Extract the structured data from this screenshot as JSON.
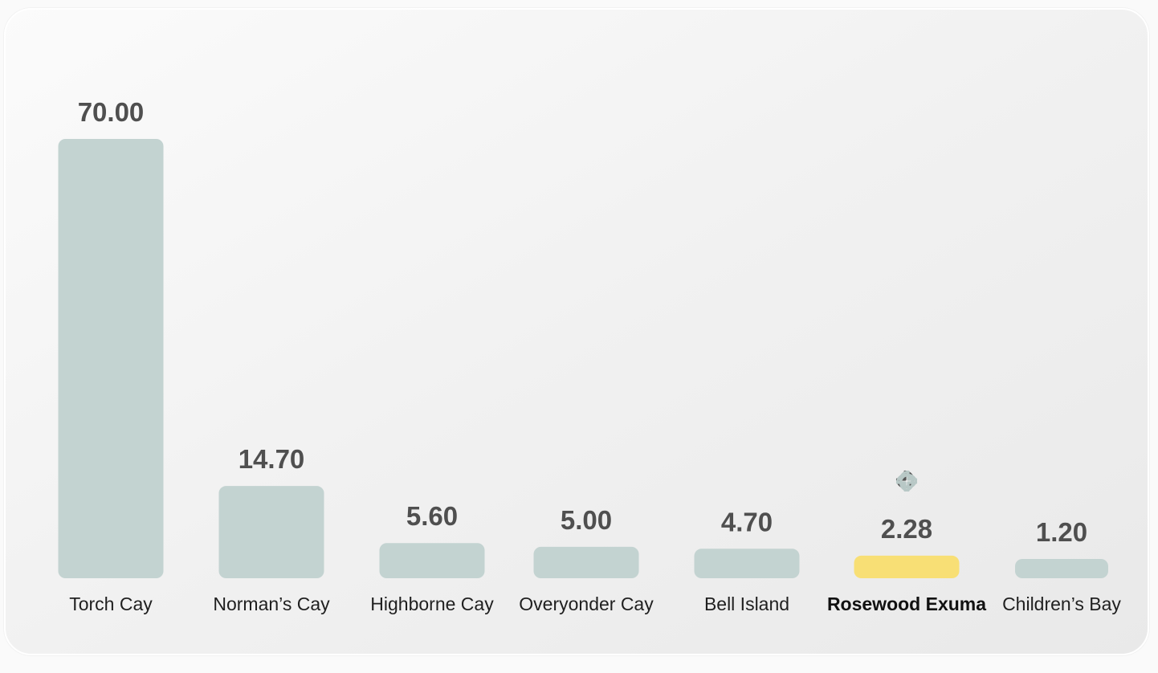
{
  "chart_data": {
    "type": "bar",
    "title": "",
    "xlabel": "",
    "ylabel": "",
    "ylim": [
      0,
      70
    ],
    "grid": false,
    "legend": "none",
    "categories": [
      "Torch Cay",
      "Norman’s Cay",
      "Highborne Cay",
      "Overyonder Cay",
      "Bell Island",
      "Rosewood Exuma",
      "Children’s Bay"
    ],
    "values": [
      70.0,
      14.7,
      5.6,
      5.0,
      4.7,
      2.28,
      1.2
    ],
    "value_labels": [
      "70.00",
      "14.70",
      "5.60",
      "5.00",
      "4.70",
      "2.28",
      "1.20"
    ],
    "highlight_index": 5,
    "highlight_icon": "clover-logo-icon",
    "colors": {
      "bar": "#c3d3d1",
      "highlight": "#f8df75",
      "value_text": "#4f4f4f",
      "label_text": "#1f1f1f",
      "icon_dark": "#555555",
      "icon_light": "#b8c8c6"
    }
  }
}
